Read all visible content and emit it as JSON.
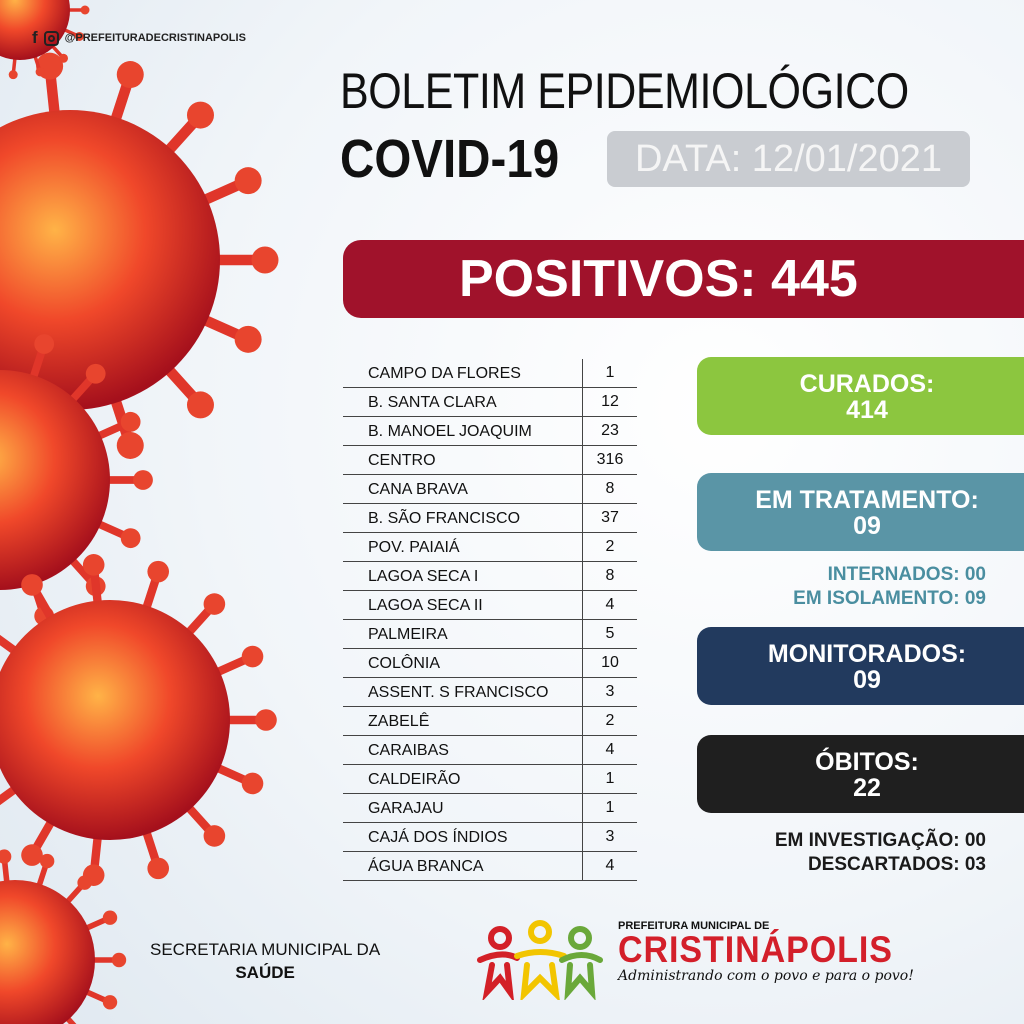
{
  "social": {
    "handle": "@PREFEITURADECRISTINAPOLIS",
    "icons": [
      "facebook-icon",
      "instagram-icon"
    ]
  },
  "header": {
    "title": "BOLETIM EPIDEMIOLÓGICO",
    "subtitle": "COVID-19",
    "date": "DATA: 12/01/2021"
  },
  "positivos": "POSITIVOS: 445",
  "table": [
    {
      "name": "CAMPO DA FLORES",
      "value": "1"
    },
    {
      "name": "B. SANTA CLARA",
      "value": "12"
    },
    {
      "name": "B. MANOEL JOAQUIM",
      "value": "23"
    },
    {
      "name": "CENTRO",
      "value": "316"
    },
    {
      "name": "CANA BRAVA",
      "value": "8"
    },
    {
      "name": "B. SÃO FRANCISCO",
      "value": "37"
    },
    {
      "name": "POV. PAIAIÁ",
      "value": "2"
    },
    {
      "name": "LAGOA SECA I",
      "value": "8"
    },
    {
      "name": "LAGOA SECA II",
      "value": "4"
    },
    {
      "name": "PALMEIRA",
      "value": "5"
    },
    {
      "name": "COLÔNIA",
      "value": "10"
    },
    {
      "name": "ASSENT. S FRANCISCO",
      "value": "3"
    },
    {
      "name": "ZABELÊ",
      "value": "2"
    },
    {
      "name": "CARAIBAS",
      "value": "4"
    },
    {
      "name": "CALDEIRÃO",
      "value": "1"
    },
    {
      "name": "GARAJAU",
      "value": "1"
    },
    {
      "name": "CAJÁ DOS ÍNDIOS",
      "value": "3"
    },
    {
      "name": "ÁGUA BRANCA",
      "value": "4"
    }
  ],
  "stats": {
    "curados": {
      "label": "CURADOS:",
      "value": "414",
      "color": "#8cc63f"
    },
    "tratamento": {
      "label": "EM TRATAMENTO:",
      "value": "09",
      "color": "#5a95a6"
    },
    "internados": "INTERNADOS: 00",
    "isolamento": "EM ISOLAMENTO: 09",
    "monitorados": {
      "label": "MONITORADOS:",
      "value": "09",
      "color": "#223a5e"
    },
    "obitos": {
      "label": "ÓBITOS:",
      "value": "22",
      "color": "#1f1f1f"
    },
    "investigacao": "EM INVESTIGAÇÃO: 00",
    "descartados": "DESCARTADOS: 03"
  },
  "footer": {
    "secretaria_line1": "SECRETARIA MUNICIPAL DA",
    "secretaria_line2": "SAÚDE",
    "logo_top": "PREFEITURA MUNICIPAL DE",
    "logo_name": "CRISTINÁPOLIS",
    "logo_slogan": "Administrando com o povo e para o povo!"
  }
}
